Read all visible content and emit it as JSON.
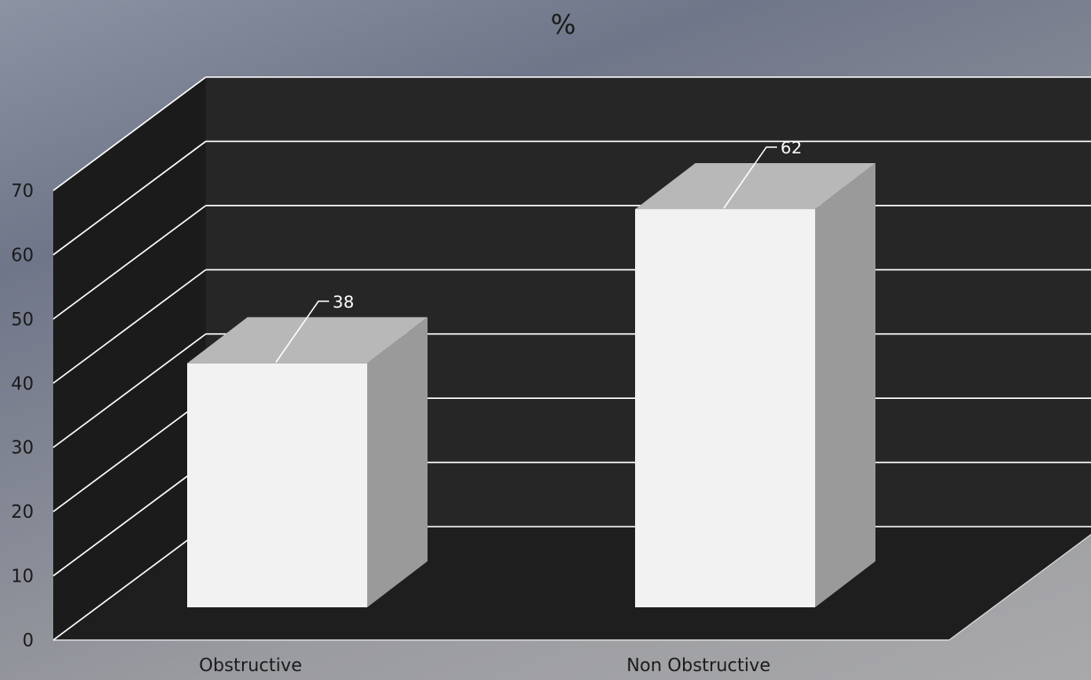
{
  "chart_data": {
    "type": "bar",
    "title": "%",
    "categories": [
      "Obstructive",
      "Non Obstructive"
    ],
    "values": [
      38,
      62
    ],
    "data_labels": [
      "38",
      "62"
    ],
    "ylim": [
      0,
      70
    ],
    "yticks": [
      "0",
      "10",
      "20",
      "30",
      "40",
      "50",
      "60",
      "70"
    ],
    "grid": true,
    "legend": "none",
    "style": "3d-column",
    "colors": {
      "bar_front": "#f2f2f2",
      "bar_top": "#b8b8b8",
      "bar_side": "#9a9a9a",
      "back_wall": "#262626",
      "side_wall": "#1b1b1b",
      "floor": "#1e1e1e",
      "gridline": "#ffffff"
    }
  }
}
